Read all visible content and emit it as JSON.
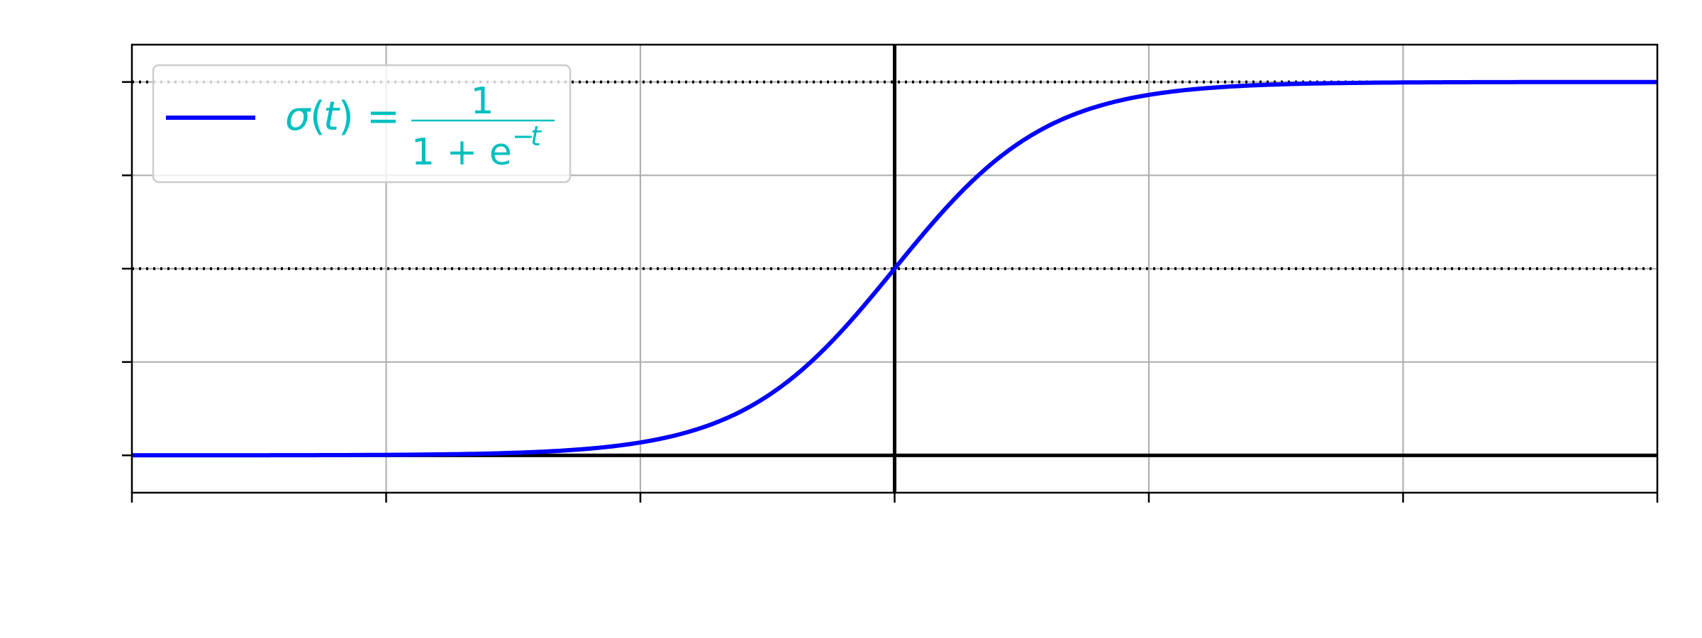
{
  "chart_data": {
    "type": "line",
    "title": "",
    "xlabel": "",
    "ylabel": "",
    "xlim": [
      -10,
      10
    ],
    "ylim": [
      -0.1,
      1.1
    ],
    "grid": true,
    "legend_placement": "upper-left",
    "reference_lines": {
      "horizontal_solid": [
        0
      ],
      "vertical_solid": [
        0
      ],
      "horizontal_dotted": [
        0.5,
        1.0
      ]
    },
    "series": [
      {
        "name": "σ(t) = 1 / (1 + e^−t)",
        "function": "sigmoid",
        "color": "#0000ff",
        "x_range": [
          -10,
          10
        ],
        "x_step": 0.1
      }
    ],
    "colors": {
      "curve": "#0000ff",
      "legend_text": "#00bfbf",
      "grid": "#b0b0b0",
      "axes": "#000000",
      "legend_border": "#cccccc"
    }
  }
}
